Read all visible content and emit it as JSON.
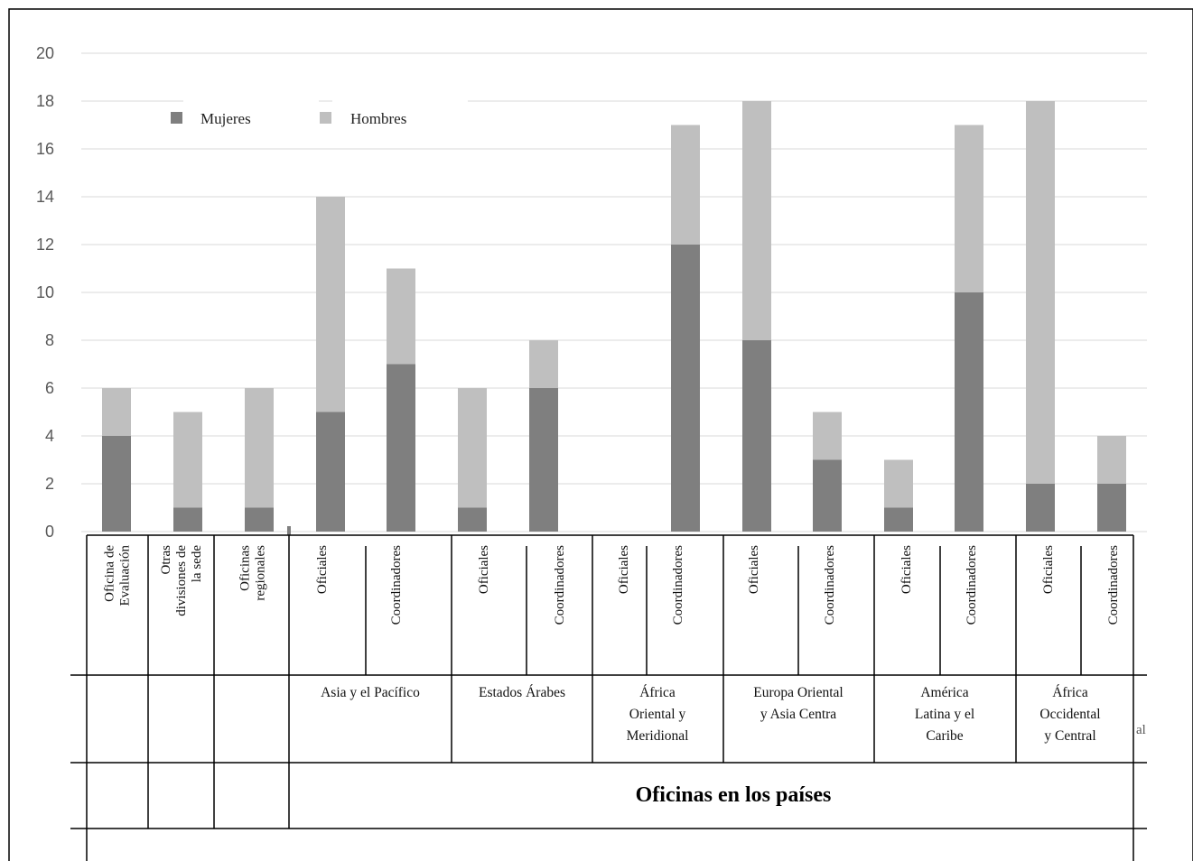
{
  "chart_data": {
    "type": "bar",
    "stacked": true,
    "ylim": [
      0,
      20
    ],
    "yticks": [
      0,
      2,
      4,
      6,
      8,
      10,
      12,
      14,
      16,
      18,
      20
    ],
    "grid": true,
    "legend_position": "top-left",
    "categories": [
      "Oficina de Evaluación",
      "Otras divisiones de la sede",
      "Oficinas regionales",
      "Oficiales",
      "Coordinadores",
      "Oficiales",
      "Coordinadores",
      "Oficiales",
      "Coordinadores",
      "Oficiales",
      "Coordinadores",
      "Oficiales",
      "Coordinadores",
      "Oficiales",
      "Coordinadores"
    ],
    "series": [
      {
        "name": "Mujeres",
        "color": "#7f7f7f",
        "values": [
          4,
          1,
          1,
          5,
          7,
          1,
          6,
          0,
          12,
          8,
          3,
          1,
          10,
          2,
          2
        ]
      },
      {
        "name": "Hombres",
        "color": "#bfbfbf",
        "values": [
          2,
          4,
          5,
          9,
          4,
          5,
          2,
          0,
          5,
          10,
          2,
          2,
          7,
          16,
          2
        ]
      }
    ],
    "regions": [
      "Asia y el Pacífico",
      "Estados Árabes",
      "África Oriental y Meridional",
      "Europa Oriental y Asia Centra",
      "América Latina y el Caribe",
      "África Occidental y Central"
    ],
    "group_label": "Oficinas en los países",
    "stray_text": "al"
  }
}
